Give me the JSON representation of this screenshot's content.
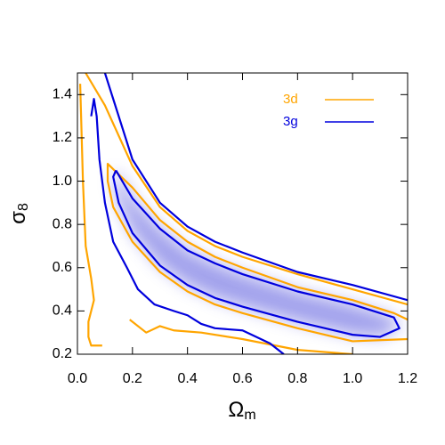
{
  "chart_data": {
    "type": "contour",
    "xlabel": "Ω",
    "xlabel_subscript": "m",
    "ylabel": "σ",
    "ylabel_subscript": "8",
    "xlim": [
      0,
      1.2
    ],
    "ylim": [
      0.2,
      1.5
    ],
    "xticks": [
      {
        "value": 0,
        "label": "0.0"
      },
      0.2,
      0.4,
      0.6,
      0.8,
      {
        "value": 1,
        "label": "1.0"
      },
      1.2
    ],
    "yticks": [
      0.2,
      0.4,
      0.6,
      0.8,
      {
        "value": 1,
        "label": "1.0"
      },
      1.2,
      1.4
    ],
    "legend": "upper right",
    "series": [
      {
        "name": "3d",
        "color": "#ffa500",
        "contours": [
          {
            "x": [
              1.2,
              1.15,
              1.0,
              0.8,
              0.6,
              0.5,
              0.4,
              0.3,
              0.2,
              0.11,
              0.11,
              0.13,
              0.2,
              0.3,
              0.4,
              0.5,
              0.6,
              0.8,
              1.0,
              1.2
            ],
            "y": [
              0.36,
              0.39,
              0.45,
              0.51,
              0.6,
              0.65,
              0.72,
              0.82,
              0.97,
              1.08,
              1.0,
              0.88,
              0.72,
              0.58,
              0.49,
              0.43,
              0.39,
              0.32,
              0.26,
              0.27
            ]
          },
          {
            "x": [
              0.03,
              0.1,
              0.2,
              0.3,
              0.4,
              0.5,
              0.6,
              0.8,
              1.0,
              1.2
            ],
            "y": [
              1.5,
              1.35,
              1.07,
              0.88,
              0.77,
              0.7,
              0.65,
              0.57,
              0.5,
              0.43
            ]
          },
          {
            "x": [
              0.01,
              0.02,
              0.03,
              0.05,
              0.06,
              0.04,
              0.04,
              0.05,
              0.09
            ],
            "y": [
              1.45,
              1.0,
              0.7,
              0.55,
              0.45,
              0.35,
              0.28,
              0.24,
              0.24
            ]
          },
          {
            "x": [
              0.19,
              0.25,
              0.3,
              0.35,
              0.45,
              0.6,
              0.8,
              1.0
            ],
            "y": [
              0.36,
              0.3,
              0.33,
              0.31,
              0.3,
              0.27,
              0.22,
              0.2
            ]
          }
        ]
      },
      {
        "name": "3g",
        "color": "#0000dd",
        "contours": [
          {
            "x": [
              0.14,
              0.2,
              0.3,
              0.4,
              0.5,
              0.6,
              0.8,
              1.0,
              1.15,
              1.17,
              1.1,
              1.0,
              0.8,
              0.6,
              0.5,
              0.4,
              0.3,
              0.2,
              0.15,
              0.13,
              0.14
            ],
            "y": [
              1.05,
              0.92,
              0.78,
              0.68,
              0.62,
              0.57,
              0.49,
              0.43,
              0.37,
              0.32,
              0.28,
              0.29,
              0.35,
              0.42,
              0.46,
              0.52,
              0.61,
              0.76,
              0.9,
              1.02,
              1.05
            ]
          },
          {
            "x": [
              0.1,
              0.2,
              0.3,
              0.4,
              0.5,
              0.6,
              0.8,
              1.0,
              1.2
            ],
            "y": [
              1.5,
              1.1,
              0.9,
              0.79,
              0.72,
              0.67,
              0.58,
              0.52,
              0.45
            ]
          },
          {
            "x": [
              0.05,
              0.06,
              0.07,
              0.08,
              0.1,
              0.13,
              0.18,
              0.22,
              0.28,
              0.35,
              0.4,
              0.45,
              0.5,
              0.6,
              0.7,
              0.75
            ],
            "y": [
              1.3,
              1.38,
              1.3,
              1.1,
              0.9,
              0.72,
              0.6,
              0.5,
              0.43,
              0.4,
              0.38,
              0.34,
              0.32,
              0.31,
              0.25,
              0.2
            ]
          }
        ]
      }
    ]
  }
}
